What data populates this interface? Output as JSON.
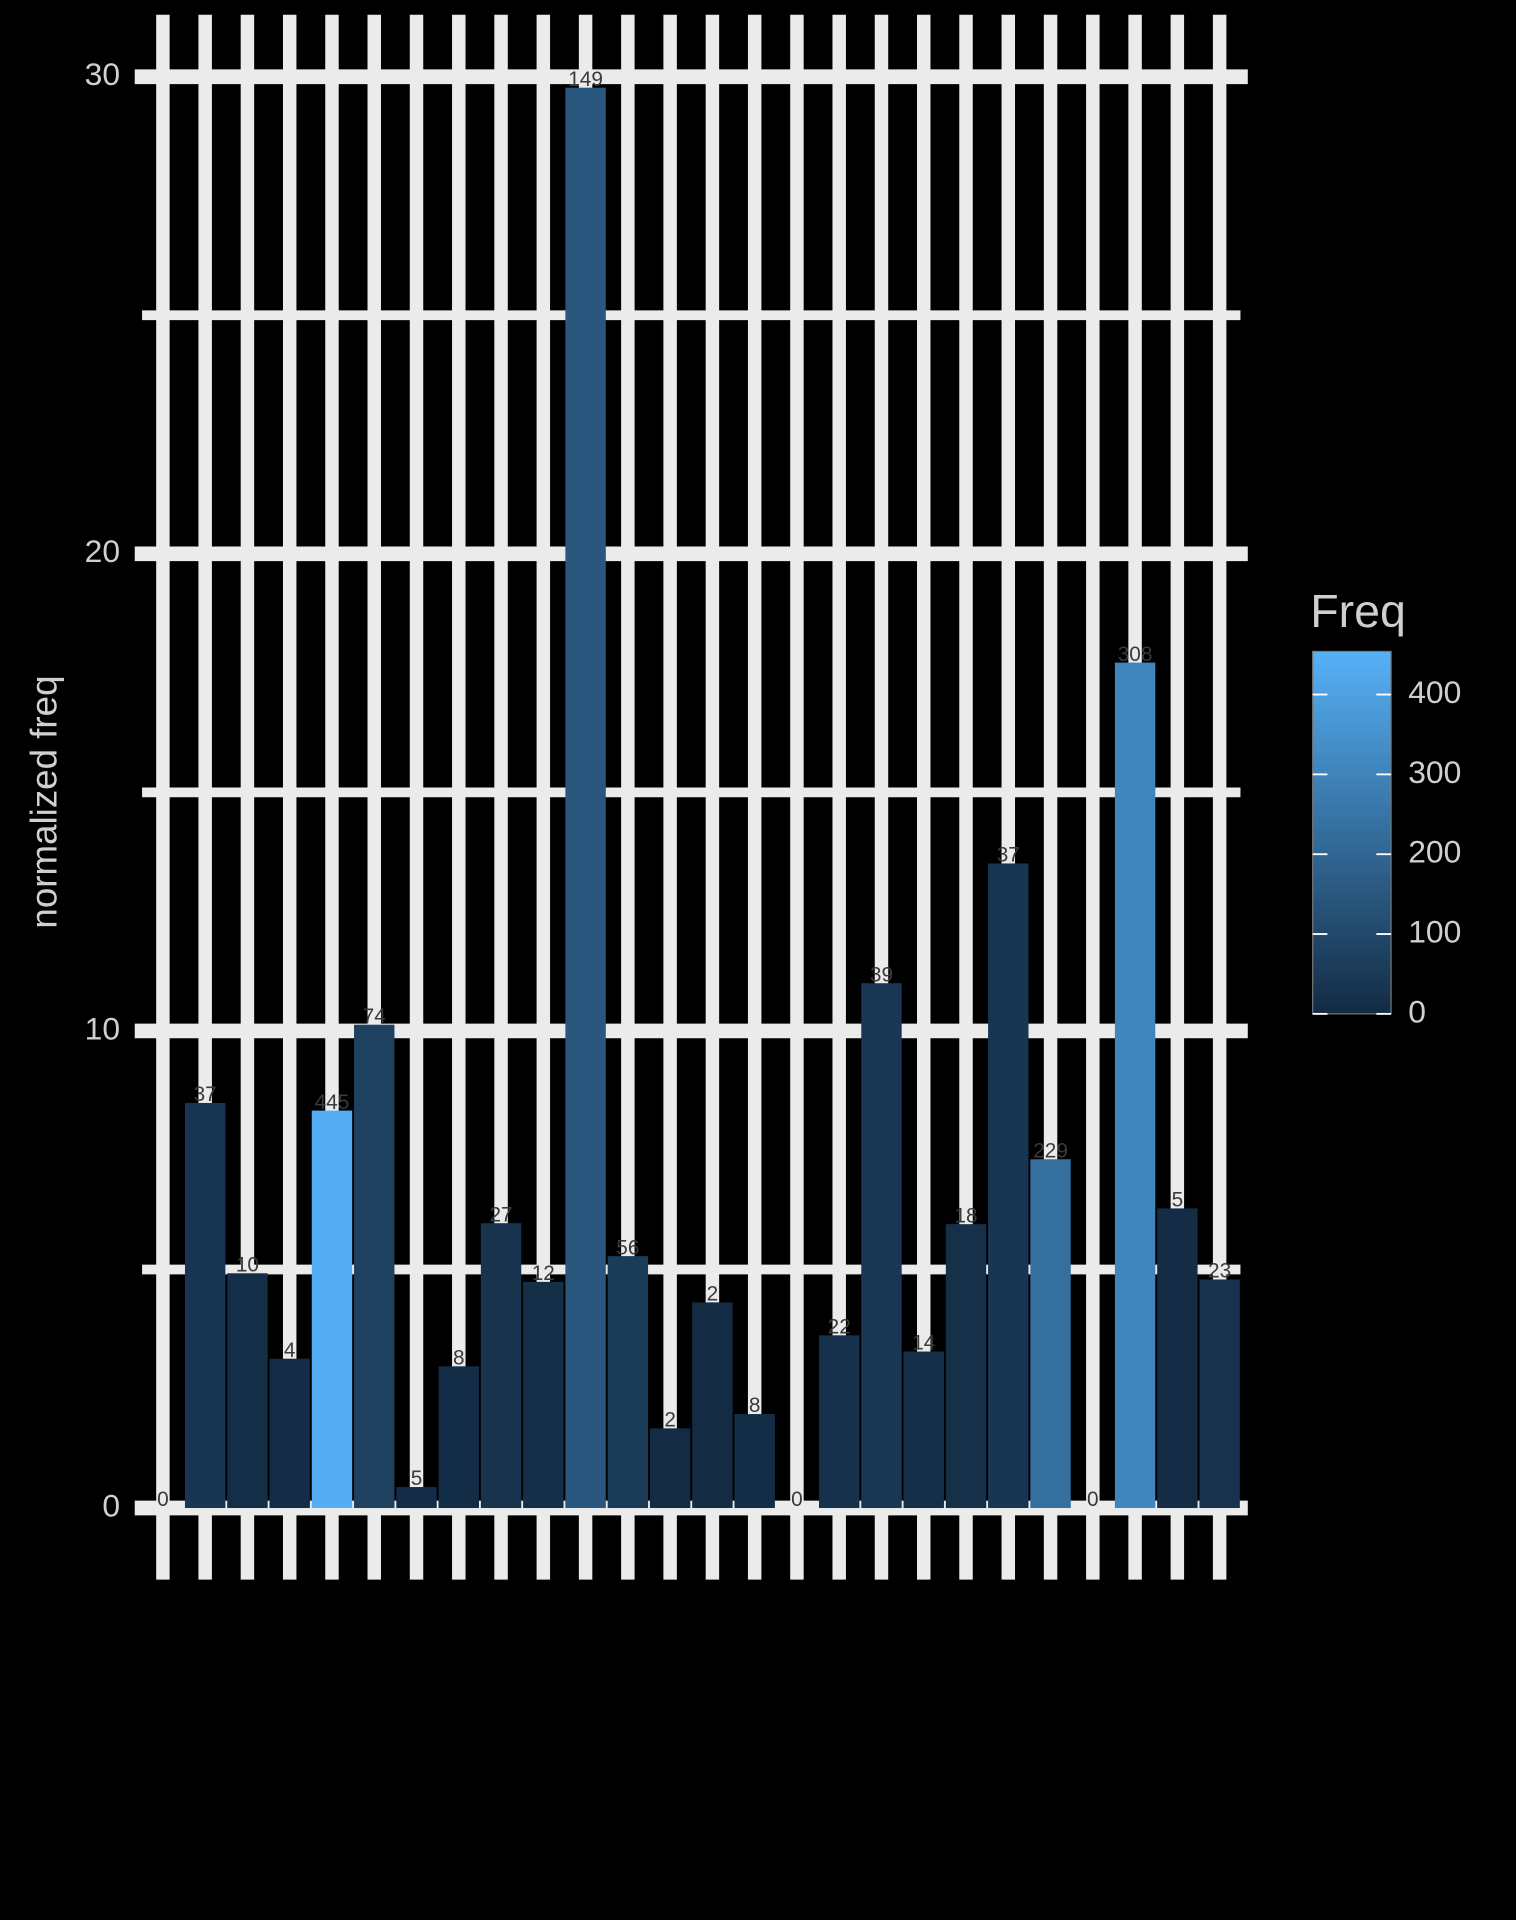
{
  "chart_data": {
    "type": "bar",
    "y_label": "normalized freq",
    "categories": [
      null,
      null,
      null,
      null,
      null,
      null,
      null,
      null,
      null,
      null,
      null,
      null,
      null,
      null,
      null,
      null,
      null,
      null,
      null,
      null,
      null,
      null,
      null,
      null,
      null,
      null
    ],
    "values": [
      0,
      8.49,
      4.92,
      3.13,
      8.33,
      10.13,
      0.44,
      2.97,
      5.97,
      4.74,
      29.77,
      5.28,
      1.67,
      4.31,
      1.97,
      0,
      3.62,
      11.0,
      3.28,
      5.95,
      13.51,
      7.31,
      0,
      17.72,
      6.28,
      4.79
    ],
    "freq": [
      0,
      37,
      10,
      4,
      445,
      74,
      5,
      8,
      27,
      12,
      149,
      56,
      2,
      2,
      8,
      0,
      22,
      39,
      14,
      18,
      37,
      229,
      0,
      308,
      5,
      23
    ],
    "ylim": [
      -1.5,
      31.3
    ],
    "yticks": [
      0,
      10,
      20,
      30
    ],
    "yminor": [
      5,
      15,
      25
    ],
    "grid": true,
    "legend": {
      "title": "Freq",
      "lim": [
        0,
        454
      ],
      "ticks": [
        0,
        100,
        200,
        300,
        400
      ],
      "low": "#132B43",
      "high": "#56B1F7"
    }
  }
}
